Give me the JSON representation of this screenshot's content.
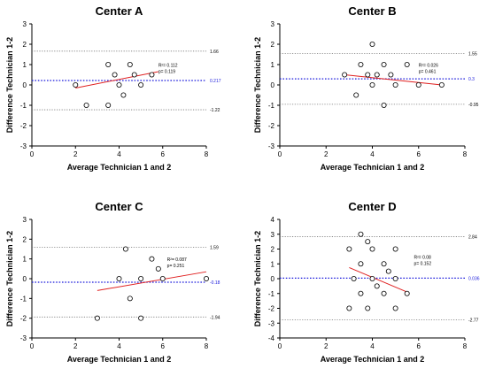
{
  "chart_data": [
    {
      "type": "scatter",
      "title": "Center A",
      "xlabel": "Average Technician 1 and 2",
      "ylabel": "Difference Technician 1-2",
      "xlim": [
        0,
        8
      ],
      "ylim": [
        -3,
        3
      ],
      "xticks": [
        "0",
        "2",
        "4",
        "6",
        "8"
      ],
      "yticks": [
        "-3",
        "-2",
        "-1",
        "0",
        "1",
        "2",
        "3"
      ],
      "points": [
        {
          "x": 2.0,
          "y": 0.0
        },
        {
          "x": 2.5,
          "y": -1.0
        },
        {
          "x": 3.5,
          "y": 1.0
        },
        {
          "x": 3.5,
          "y": -1.0
        },
        {
          "x": 3.8,
          "y": 0.5
        },
        {
          "x": 4.0,
          "y": 0.0
        },
        {
          "x": 4.2,
          "y": -0.5
        },
        {
          "x": 4.5,
          "y": 1.0
        },
        {
          "x": 4.7,
          "y": 0.5
        },
        {
          "x": 5.0,
          "y": 0.0
        },
        {
          "x": 5.5,
          "y": 0.5
        }
      ],
      "regression": {
        "x": [
          2.0,
          5.8
        ],
        "y": [
          -0.15,
          0.65
        ]
      },
      "bias": 0.217,
      "loa_upper": 1.66,
      "loa_lower": -1.22,
      "bias_label": "0.217",
      "upper_label": "1.66",
      "lower_label": "-1.22",
      "r2_text": "R²= 0.112",
      "p_text": "p= 0.119",
      "stats_pos": {
        "x": 5.8,
        "y": 0.9
      }
    },
    {
      "type": "scatter",
      "title": "Center B",
      "xlabel": "Average Technician 1 and 2",
      "ylabel": "Difference Technician 1-2",
      "xlim": [
        0,
        8
      ],
      "ylim": [
        -3,
        3
      ],
      "xticks": [
        "0",
        "2",
        "4",
        "6",
        "8"
      ],
      "yticks": [
        "-3",
        "-2",
        "-1",
        "0",
        "1",
        "2",
        "3"
      ],
      "points": [
        {
          "x": 2.8,
          "y": 0.5
        },
        {
          "x": 3.3,
          "y": -0.5
        },
        {
          "x": 3.5,
          "y": 1.0
        },
        {
          "x": 3.8,
          "y": 0.5
        },
        {
          "x": 4.0,
          "y": 2.0
        },
        {
          "x": 4.0,
          "y": 0.0
        },
        {
          "x": 4.2,
          "y": 0.5
        },
        {
          "x": 4.5,
          "y": 1.0
        },
        {
          "x": 4.5,
          "y": -1.0
        },
        {
          "x": 4.8,
          "y": 0.5
        },
        {
          "x": 5.0,
          "y": 0.0
        },
        {
          "x": 5.5,
          "y": 1.0
        },
        {
          "x": 6.0,
          "y": 0.0
        },
        {
          "x": 7.0,
          "y": 0.0
        }
      ],
      "regression": {
        "x": [
          2.8,
          7.0
        ],
        "y": [
          0.5,
          0.0
        ]
      },
      "bias": 0.3,
      "loa_upper": 1.55,
      "loa_lower": -0.95,
      "bias_label": "0.3",
      "upper_label": "1.55",
      "lower_label": "-0.95",
      "r2_text": "R²= 0.026",
      "p_text": "p= 0.461",
      "stats_pos": {
        "x": 6.0,
        "y": 0.9
      }
    },
    {
      "type": "scatter",
      "title": "Center C",
      "xlabel": "Average Technician 1 and 2",
      "ylabel": "Difference Technician 1-2",
      "xlim": [
        0,
        8
      ],
      "ylim": [
        -3,
        3
      ],
      "xticks": [
        "0",
        "2",
        "4",
        "6",
        "8"
      ],
      "yticks": [
        "-3",
        "-2",
        "-1",
        "0",
        "1",
        "2",
        "3"
      ],
      "points": [
        {
          "x": 3.0,
          "y": -2.0
        },
        {
          "x": 4.0,
          "y": 0.0
        },
        {
          "x": 4.3,
          "y": 1.5
        },
        {
          "x": 4.5,
          "y": -1.0
        },
        {
          "x": 5.0,
          "y": 0.0
        },
        {
          "x": 5.0,
          "y": -2.0
        },
        {
          "x": 5.5,
          "y": 1.0
        },
        {
          "x": 5.8,
          "y": 0.5
        },
        {
          "x": 6.0,
          "y": 0.0
        },
        {
          "x": 8.0,
          "y": 0.0
        }
      ],
      "regression": {
        "x": [
          3.0,
          8.0
        ],
        "y": [
          -0.6,
          0.35
        ]
      },
      "bias": -0.18,
      "loa_upper": 1.59,
      "loa_lower": -1.94,
      "bias_label": "-0.18",
      "upper_label": "1.59",
      "lower_label": "-1.94",
      "r2_text": "R²= 0.087",
      "p_text": "p= 0.251",
      "stats_pos": {
        "x": 6.2,
        "y": 0.9
      }
    },
    {
      "type": "scatter",
      "title": "Center D",
      "xlabel": "Average Technician 1 and 2",
      "ylabel": "Difference Technician 1-2",
      "xlim": [
        0,
        8
      ],
      "ylim": [
        -4,
        4
      ],
      "xticks": [
        "0",
        "2",
        "4",
        "6",
        "8"
      ],
      "yticks": [
        "-4",
        "-3",
        "-2",
        "-1",
        "0",
        "1",
        "2",
        "3",
        "4"
      ],
      "points": [
        {
          "x": 3.0,
          "y": 2.0
        },
        {
          "x": 3.0,
          "y": -2.0
        },
        {
          "x": 3.5,
          "y": 3.0
        },
        {
          "x": 3.5,
          "y": 1.0
        },
        {
          "x": 3.5,
          "y": -1.0
        },
        {
          "x": 3.8,
          "y": 2.5
        },
        {
          "x": 3.8,
          "y": -2.0
        },
        {
          "x": 4.0,
          "y": 2.0
        },
        {
          "x": 4.0,
          "y": 0.0
        },
        {
          "x": 4.2,
          "y": -0.5
        },
        {
          "x": 4.5,
          "y": 1.0
        },
        {
          "x": 4.5,
          "y": -1.0
        },
        {
          "x": 4.7,
          "y": 0.5
        },
        {
          "x": 5.0,
          "y": 2.0
        },
        {
          "x": 5.0,
          "y": 0.0
        },
        {
          "x": 5.0,
          "y": -2.0
        },
        {
          "x": 5.5,
          "y": -1.0
        },
        {
          "x": 3.2,
          "y": 0.0
        }
      ],
      "regression": {
        "x": [
          3.0,
          5.5
        ],
        "y": [
          0.75,
          -0.9
        ]
      },
      "bias": 0.036,
      "loa_upper": 2.84,
      "loa_lower": -2.77,
      "bias_label": "0.036",
      "upper_label": "2.84",
      "lower_label": "-2.77",
      "r2_text": "R²= 0.08",
      "p_text": "p= 0.152",
      "stats_pos": {
        "x": 5.8,
        "y": 1.35
      }
    }
  ]
}
